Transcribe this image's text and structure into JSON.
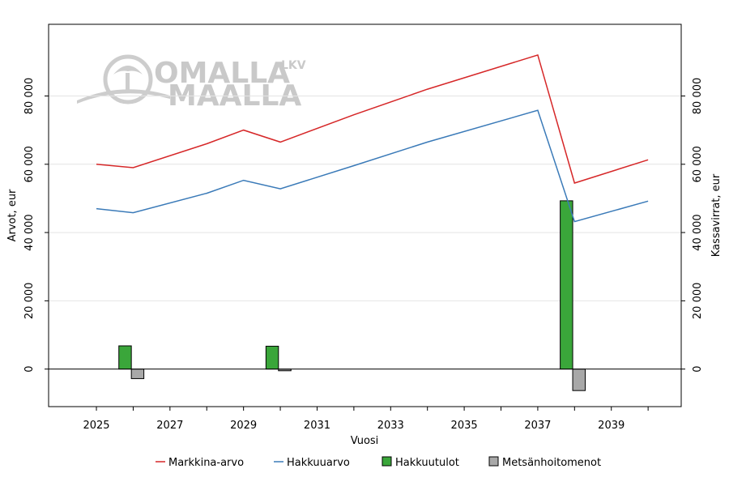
{
  "chart_data": {
    "type": "line+bar",
    "xlabel": "Vuosi",
    "ylabel_left": "Arvot, eur",
    "ylabel_right": "Kassavirrat, eur",
    "xlim": [
      2023.7,
      2040.9
    ],
    "ylim": [
      -11000,
      101000
    ],
    "x_ticks": [
      2025,
      2027,
      2029,
      2031,
      2033,
      2035,
      2037,
      2039
    ],
    "x_tick_labels": [
      "2025",
      "2027",
      "2029",
      "2031",
      "2033",
      "2035",
      "2037",
      "2039"
    ],
    "y_ticks": [
      0,
      20000,
      40000,
      60000,
      80000
    ],
    "y_tick_labels": [
      "0",
      "20 000",
      "40 000",
      "60 000",
      "80 000"
    ],
    "series": [
      {
        "name": "Markkina-arvo",
        "kind": "line",
        "color": "#d62728",
        "x": [
          2025,
          2026,
          2028,
          2029,
          2030,
          2032,
          2034,
          2037,
          2038,
          2040
        ],
        "y": [
          60000,
          59000,
          66000,
          70000,
          66500,
          74500,
          82000,
          92000,
          54500,
          61300
        ]
      },
      {
        "name": "Hakkuuarvo",
        "kind": "line",
        "color": "#3a7ab8",
        "x": [
          2025,
          2026,
          2028,
          2029,
          2030,
          2032,
          2034,
          2037,
          2038,
          2040
        ],
        "y": [
          47000,
          45800,
          51500,
          55300,
          52800,
          59600,
          66500,
          75800,
          43200,
          49200
        ]
      },
      {
        "name": "Hakkuutulot",
        "kind": "bar",
        "color": "#3aa63a",
        "x": [
          2025.78,
          2029.78,
          2037.78
        ],
        "y": [
          6800,
          6700,
          49300
        ]
      },
      {
        "name": "Metsänhoitomenot",
        "kind": "bar",
        "color": "#a8a8a8",
        "x": [
          2026.12,
          2030.12,
          2038.12
        ],
        "y": [
          -2800,
          -500,
          -6300
        ]
      }
    ],
    "legend": [
      "Markkina-arvo",
      "Hakkuuarvo",
      "Hakkuutulot",
      "Metsänhoitomenot"
    ],
    "legend_position": "bottom",
    "grid": "horizontal"
  },
  "watermark": {
    "line1": "OMALLA",
    "line2": "MAALLA",
    "suffix": "LKV"
  }
}
